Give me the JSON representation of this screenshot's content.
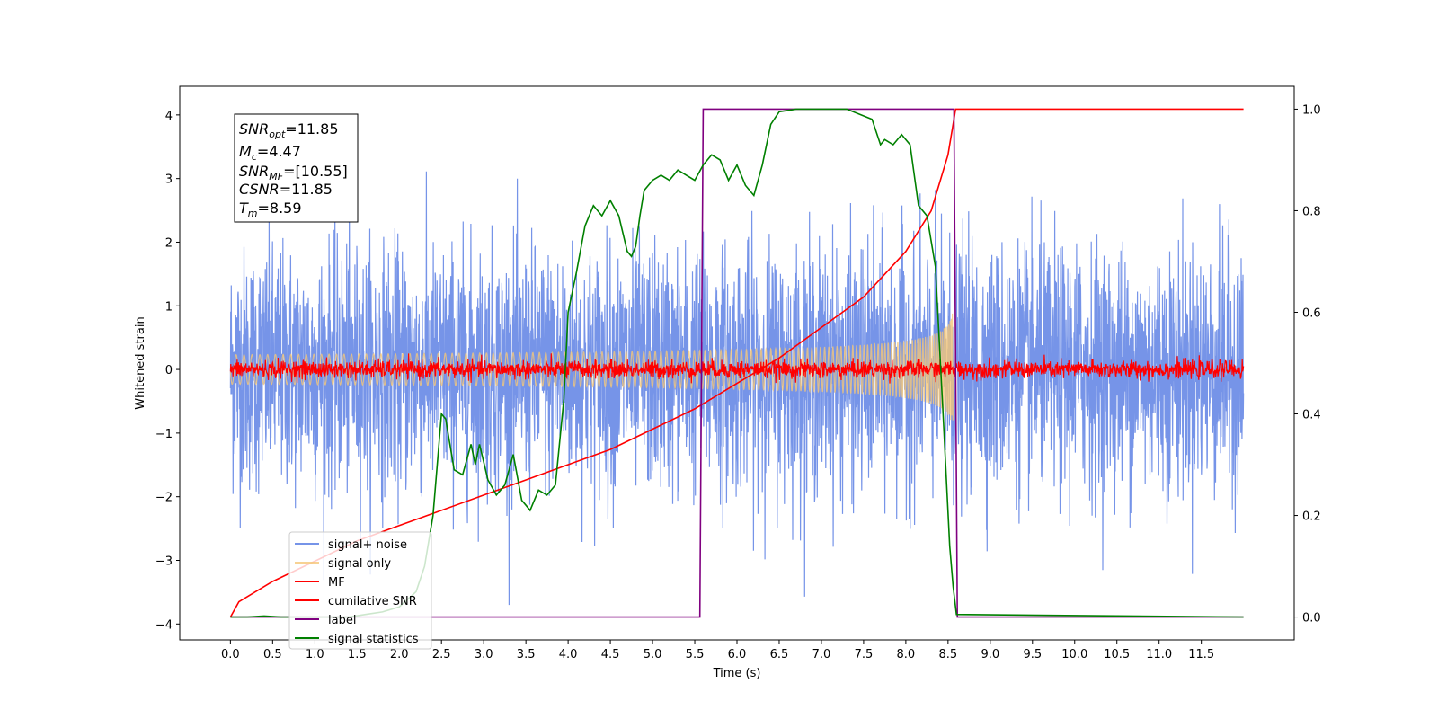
{
  "chart_data": {
    "type": "line",
    "xlabel": "Time (s)",
    "ylabel": "Whitened strain",
    "xlim": [
      -0.6,
      12.6
    ],
    "ylim": [
      -4.25,
      4.45
    ],
    "y2lim": [
      -0.045,
      1.045
    ],
    "xticks": [
      "0.0",
      "0.5",
      "1.0",
      "1.5",
      "2.0",
      "2.5",
      "3.0",
      "3.5",
      "4.0",
      "4.5",
      "5.0",
      "5.5",
      "6.0",
      "6.5",
      "7.0",
      "7.5",
      "8.0",
      "8.5",
      "9.0",
      "9.5",
      "10.0",
      "10.5",
      "11.0",
      "11.5"
    ],
    "yticks": [
      "4",
      "3",
      "2",
      "1",
      "0",
      "−1",
      "−2",
      "−3",
      "−4"
    ],
    "y2ticks": [
      "1.0",
      "0.8",
      "0.6",
      "0.4",
      "0.2",
      "0.0"
    ],
    "grid": false,
    "legend_position": "lower-left",
    "annotation": {
      "lines": [
        {
          "base": "SNR",
          "sub": "opt",
          "rest": "=11.85"
        },
        {
          "base": "M",
          "sub": "c",
          "rest": "=4.47"
        },
        {
          "base": "SNR",
          "sub": "MF",
          "rest": "=[10.55]"
        },
        {
          "base": "CSNR",
          "sub": "",
          "rest": "=11.85"
        },
        {
          "base": "T",
          "sub": "m",
          "rest": "=8.59"
        }
      ]
    },
    "series": [
      {
        "name": "signal+ noise",
        "color": "#7694e8",
        "axis": "left",
        "kind": "noise",
        "x_range": [
          0.0,
          12.0
        ],
        "y_std": 0.95,
        "y_approx_range": [
          -3.7,
          4.2
        ]
      },
      {
        "name": "signal only",
        "color": "#f5c778",
        "axis": "left",
        "kind": "chirp",
        "x_range": [
          0.0,
          8.59
        ],
        "amplitude_max": 0.95
      },
      {
        "name": "MF",
        "color": "#ff0000",
        "axis": "left",
        "kind": "noise",
        "x_range": [
          0.0,
          12.0
        ],
        "y_std": 0.07
      },
      {
        "name": "cumilative SNR",
        "color": "#ff0000",
        "axis": "right",
        "x": [
          0.0,
          0.1,
          0.5,
          1.0,
          1.5,
          2.0,
          2.5,
          3.0,
          3.5,
          4.0,
          4.5,
          5.0,
          5.5,
          6.0,
          6.5,
          7.0,
          7.5,
          8.0,
          8.3,
          8.5,
          8.59,
          12.0
        ],
        "y": [
          0.0,
          0.03,
          0.07,
          0.11,
          0.15,
          0.18,
          0.21,
          0.24,
          0.27,
          0.3,
          0.33,
          0.37,
          0.41,
          0.46,
          0.51,
          0.57,
          0.63,
          0.72,
          0.8,
          0.91,
          1.0,
          1.0
        ]
      },
      {
        "name": "label",
        "color": "#800080",
        "axis": "right",
        "x": [
          0.0,
          5.56,
          5.6,
          8.57,
          8.61,
          12.0
        ],
        "y": [
          0.0,
          0.0,
          1.0,
          1.0,
          0.0,
          0.0
        ]
      },
      {
        "name": "signal statistics",
        "color": "#008000",
        "axis": "right",
        "x": [
          0.0,
          0.2,
          0.4,
          0.6,
          0.8,
          1.0,
          1.2,
          1.4,
          1.6,
          1.8,
          2.0,
          2.2,
          2.3,
          2.4,
          2.5,
          2.55,
          2.65,
          2.75,
          2.85,
          2.9,
          2.95,
          3.05,
          3.15,
          3.25,
          3.35,
          3.45,
          3.5,
          3.55,
          3.65,
          3.75,
          3.85,
          3.95,
          4.0,
          4.1,
          4.2,
          4.3,
          4.4,
          4.5,
          4.6,
          4.7,
          4.75,
          4.8,
          4.85,
          4.9,
          5.0,
          5.1,
          5.2,
          5.3,
          5.4,
          5.5,
          5.6,
          5.7,
          5.8,
          5.9,
          6.0,
          6.1,
          6.2,
          6.3,
          6.4,
          6.5,
          6.7,
          7.0,
          7.3,
          7.6,
          7.7,
          7.75,
          7.85,
          7.95,
          8.05,
          8.15,
          8.25,
          8.35,
          8.45,
          8.52,
          8.56,
          8.6,
          12.0
        ],
        "y": [
          0.0,
          0.0,
          0.002,
          0.0,
          0.0,
          0.0,
          0.0,
          0.0,
          0.005,
          0.01,
          0.02,
          0.05,
          0.1,
          0.2,
          0.4,
          0.39,
          0.29,
          0.28,
          0.34,
          0.3,
          0.34,
          0.27,
          0.24,
          0.26,
          0.32,
          0.23,
          0.22,
          0.21,
          0.25,
          0.24,
          0.26,
          0.43,
          0.6,
          0.68,
          0.77,
          0.81,
          0.79,
          0.82,
          0.79,
          0.72,
          0.71,
          0.73,
          0.79,
          0.84,
          0.86,
          0.87,
          0.86,
          0.88,
          0.87,
          0.86,
          0.89,
          0.91,
          0.9,
          0.86,
          0.89,
          0.85,
          0.83,
          0.89,
          0.97,
          0.995,
          1.0,
          1.0,
          1.0,
          0.98,
          0.93,
          0.94,
          0.93,
          0.95,
          0.93,
          0.81,
          0.79,
          0.69,
          0.37,
          0.14,
          0.06,
          0.005,
          0.0
        ]
      }
    ]
  }
}
